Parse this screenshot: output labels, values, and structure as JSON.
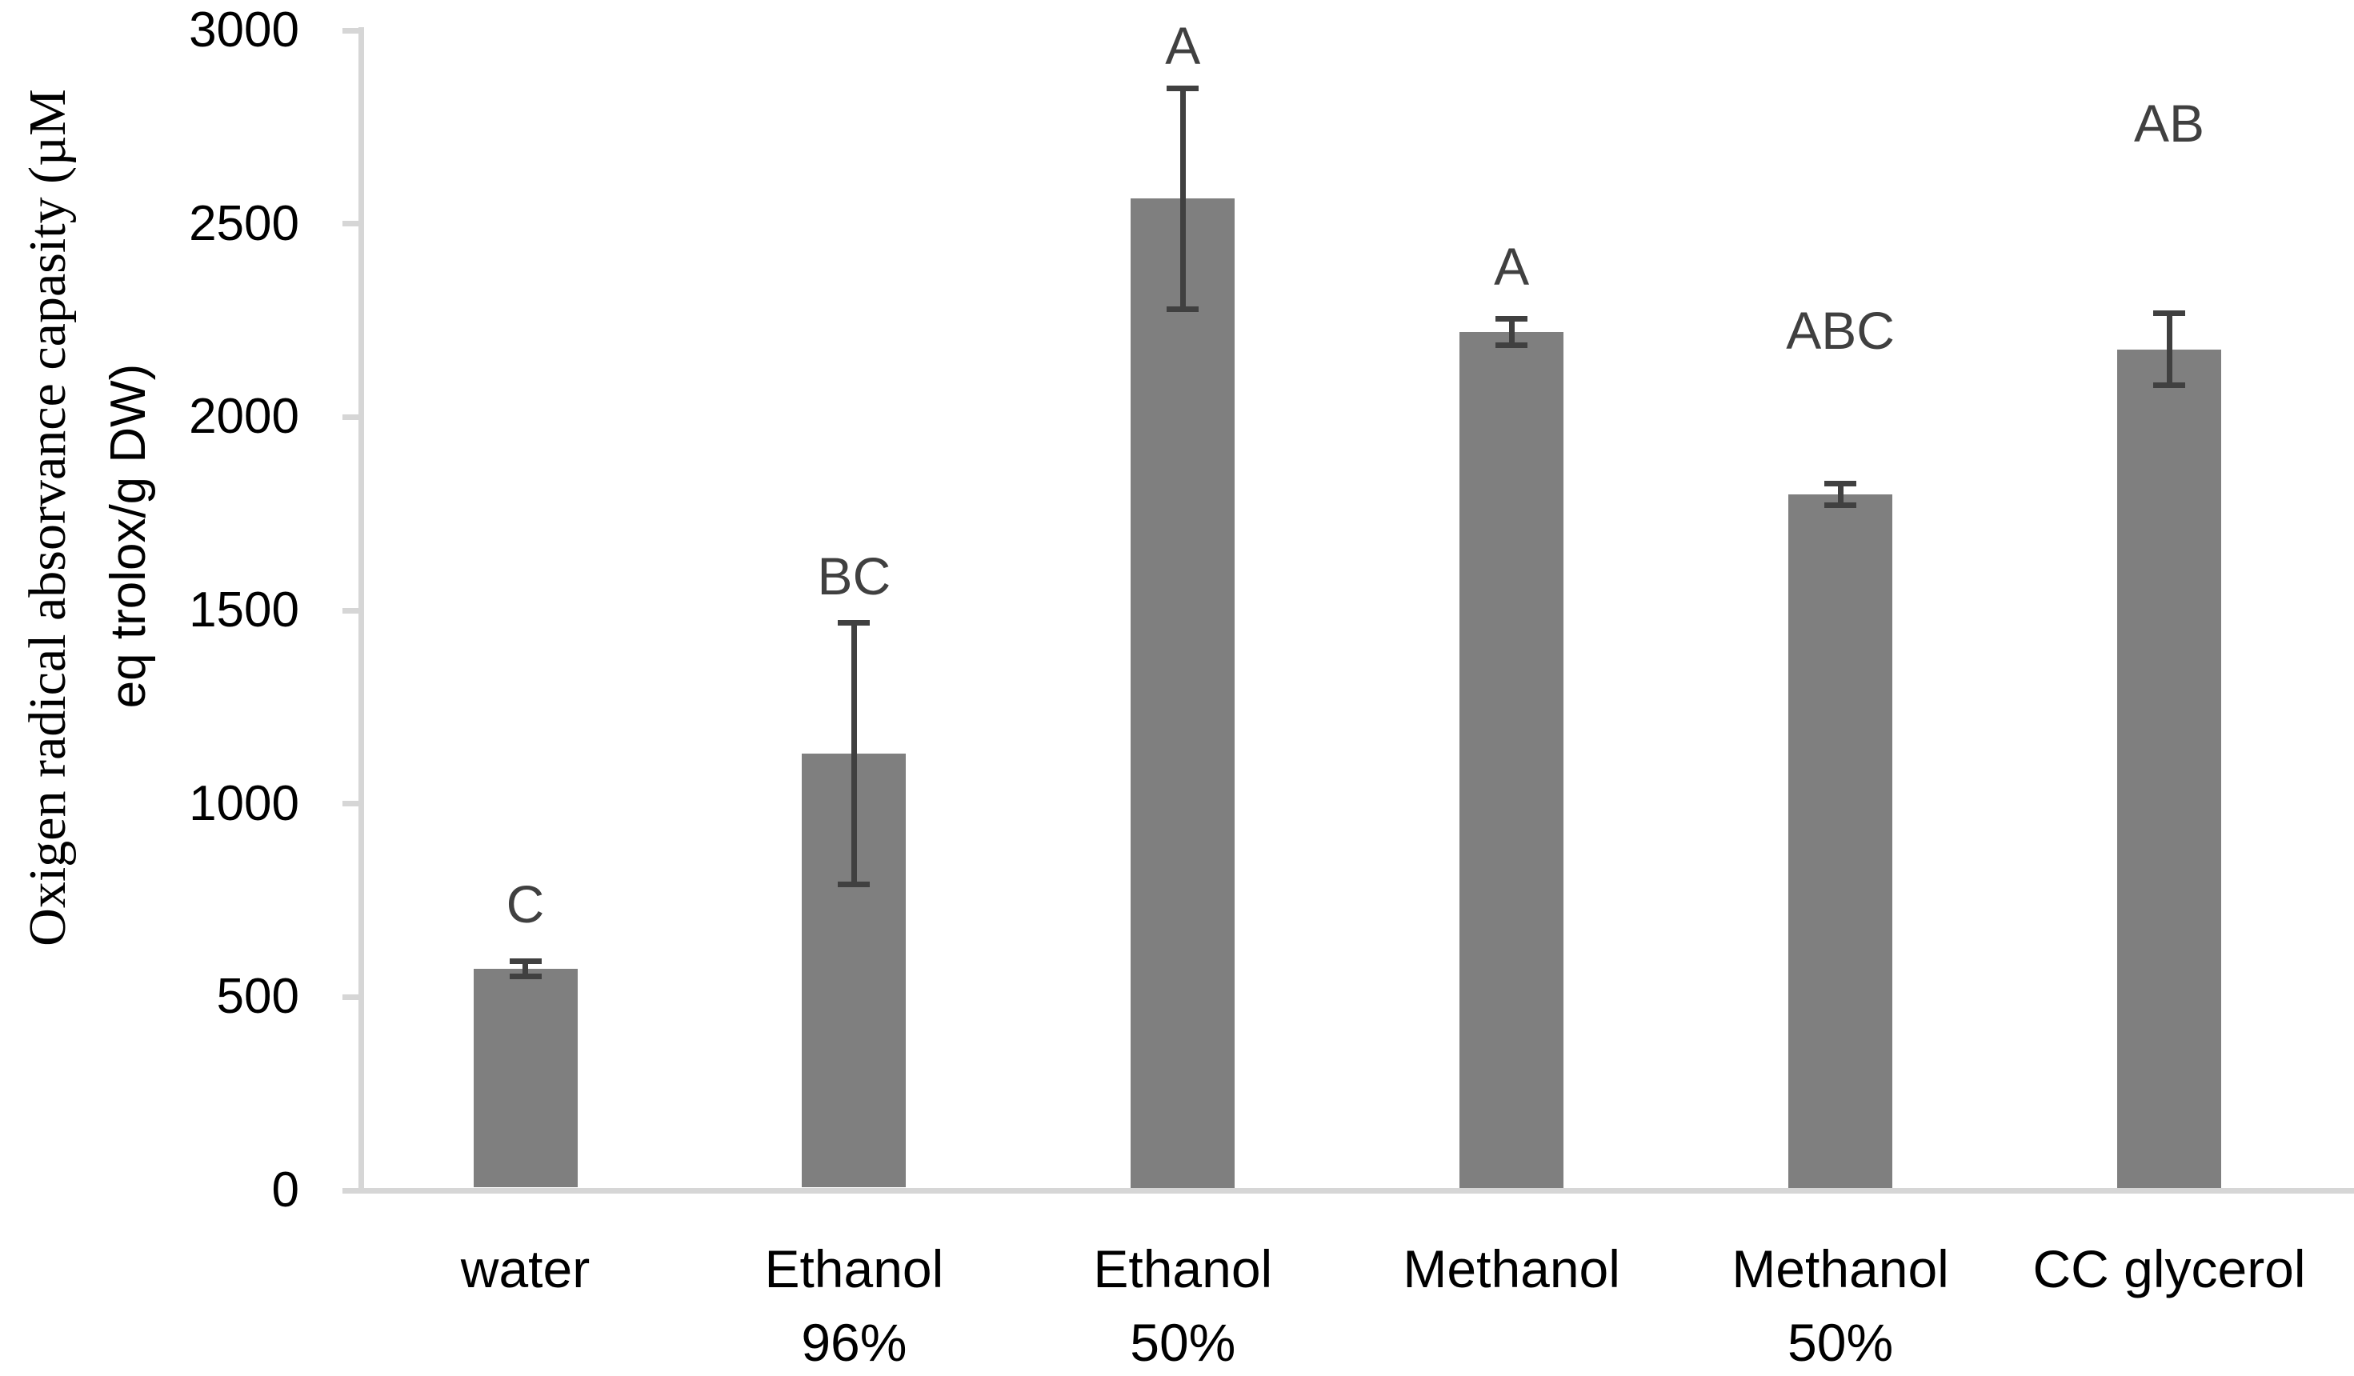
{
  "chart_data": {
    "type": "bar",
    "title": "",
    "ylabel_line1": "Oxigen radical absorvance capasity (µM",
    "ylabel_line2": "eq trolox/g DW)",
    "xlabel": "",
    "ylim": [
      0,
      3000
    ],
    "yticks": [
      "0",
      "500",
      "1000",
      "1500",
      "2000",
      "2500",
      "3000"
    ],
    "grid": false,
    "legend": false,
    "bar_color": "#7f7f7f",
    "error_bar_color": "#404040",
    "axis_color": "#d6d6d6",
    "text_color": "#000000",
    "categories": [
      {
        "label_lines": [
          "water"
        ],
        "value": 573,
        "error": 20,
        "letter": "C",
        "letter_y": 740
      },
      {
        "label_lines": [
          "Ethanol",
          "96%"
        ],
        "value": 1130,
        "error": 338,
        "letter": "BC",
        "letter_y": 1590
      },
      {
        "label_lines": [
          "Ethanol",
          "50%"
        ],
        "value": 2565,
        "error": 285,
        "letter": "A",
        "letter_y": 2960
      },
      {
        "label_lines": [
          "Methanol"
        ],
        "value": 2220,
        "error": 35,
        "letter": "A",
        "letter_y": 2390
      },
      {
        "label_lines": [
          "Methanol",
          "50%"
        ],
        "value": 1800,
        "error": 28,
        "letter": "ABC",
        "letter_y": 2225
      },
      {
        "label_lines": [
          "CC glycerol"
        ],
        "value": 2175,
        "error": 93,
        "letter": "AB",
        "letter_y": 2760
      }
    ]
  }
}
